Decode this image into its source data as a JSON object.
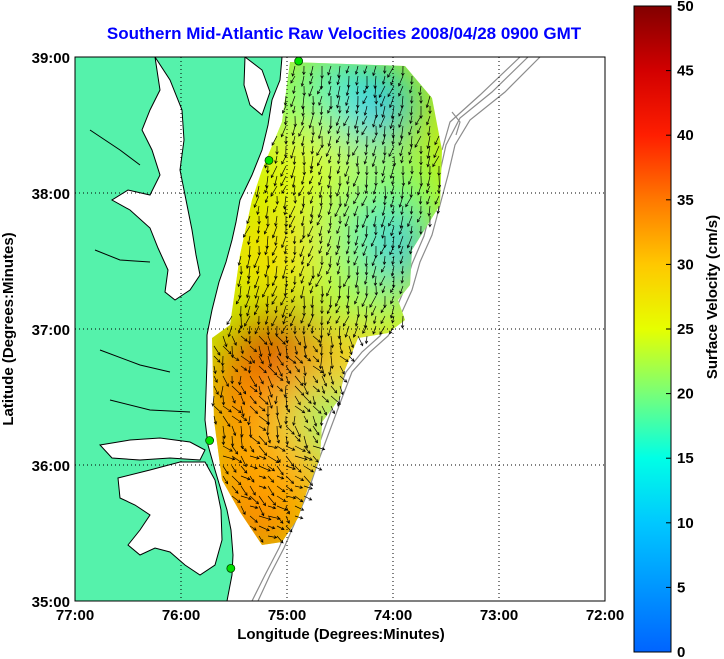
{
  "chart_data": {
    "type": "heatmap",
    "title": "Southern Mid-Atlantic Raw Velocities 2008/04/28 0900 GMT",
    "xlabel": "Longitude (Degrees:Minutes)",
    "ylabel": "Latitude (Degrees:Minutes)",
    "colorbar_label": "Surface Velocity (cm/s)",
    "x_ticks": [
      "77:00",
      "76:00",
      "75:00",
      "74:00",
      "73:00",
      "72:00"
    ],
    "x_tick_values": [
      -77,
      -76,
      -75,
      -74,
      -73,
      -72
    ],
    "y_ticks": [
      "39:00",
      "38:00",
      "37:00",
      "36:00",
      "35:00"
    ],
    "y_tick_values": [
      39,
      38,
      37,
      36,
      35
    ],
    "xlim": [
      -77,
      -72
    ],
    "ylim": [
      35,
      39
    ],
    "colorbar_ticks": [
      50,
      45,
      40,
      35,
      30,
      25,
      20,
      15,
      10,
      5,
      0
    ],
    "clim": [
      0,
      50
    ],
    "grid": true,
    "land_color": "#55f2ab",
    "coast_color": "#000000",
    "bathymetry_color": "#8c8c8c",
    "station_color": "#00e000",
    "stations": [
      {
        "lon": -74.89,
        "lat": 38.97
      },
      {
        "lon": -75.17,
        "lat": 38.24
      },
      {
        "lon": -75.73,
        "lat": 36.18
      },
      {
        "lon": -75.53,
        "lat": 35.24
      }
    ],
    "velocity_regions": [
      {
        "lon": -74.2,
        "lat": 38.65,
        "speed": 8
      },
      {
        "lon": -74.55,
        "lat": 38.75,
        "speed": 12
      },
      {
        "lon": -74.9,
        "lat": 38.6,
        "speed": 20
      },
      {
        "lon": -74.85,
        "lat": 38.2,
        "speed": 26
      },
      {
        "lon": -74.4,
        "lat": 38.1,
        "speed": 24
      },
      {
        "lon": -74.0,
        "lat": 37.95,
        "speed": 20
      },
      {
        "lon": -74.1,
        "lat": 37.55,
        "speed": 8
      },
      {
        "lon": -74.55,
        "lat": 37.55,
        "speed": 19
      },
      {
        "lon": -74.95,
        "lat": 37.5,
        "speed": 24
      },
      {
        "lon": -75.15,
        "lat": 37.55,
        "speed": 28
      },
      {
        "lon": -74.3,
        "lat": 37.1,
        "speed": 22
      },
      {
        "lon": -75.05,
        "lat": 36.8,
        "speed": 47
      },
      {
        "lon": -74.8,
        "lat": 36.65,
        "speed": 44
      },
      {
        "lon": -74.4,
        "lat": 36.7,
        "speed": 30
      },
      {
        "lon": -75.3,
        "lat": 36.5,
        "speed": 36
      },
      {
        "lon": -74.85,
        "lat": 36.25,
        "speed": 28
      },
      {
        "lon": -74.5,
        "lat": 36.25,
        "speed": 20
      },
      {
        "lon": -75.35,
        "lat": 36.0,
        "speed": 34
      },
      {
        "lon": -75.0,
        "lat": 35.95,
        "speed": 30
      },
      {
        "lon": -75.2,
        "lat": 35.65,
        "speed": 40
      },
      {
        "lon": -75.05,
        "lat": 35.85,
        "speed": 32
      }
    ]
  }
}
